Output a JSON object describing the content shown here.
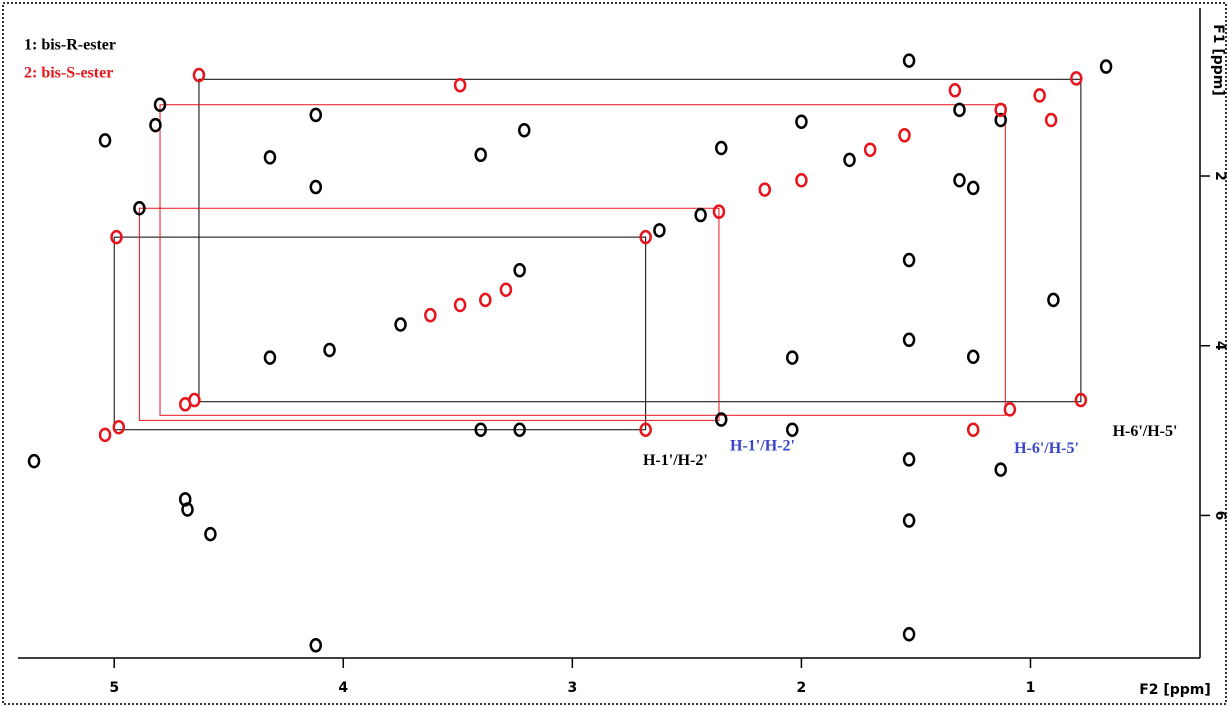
{
  "chart_data": {
    "type": "scatter",
    "legend": [
      "1: bis-R-ester",
      "2: bis-S-ester"
    ],
    "xlabel": "F2 [ppm]",
    "ylabel": "F1 [ppm]",
    "xlim": [
      5.42,
      0.26
    ],
    "ylim": [
      0.02,
      7.68
    ],
    "log_scale": false,
    "grid": false,
    "xticks": [
      5,
      4,
      3,
      2,
      1
    ],
    "yticks": [
      2,
      4,
      6
    ],
    "series": [
      {
        "name": "1: bis-R-ester",
        "color": "#000000",
        "x": [
          5.04,
          4.8,
          4.82,
          4.89,
          4.12,
          3.21,
          4.32,
          4.12,
          3.4,
          2.35,
          2.0,
          0.67,
          1.31,
          1.25,
          0.9,
          1.25,
          2.04,
          2.35,
          3.23,
          3.4,
          2.04,
          5.35,
          4.69,
          4.58,
          4.68,
          1.53,
          4.12,
          4.32,
          4.06,
          3.75,
          3.23,
          2.62,
          2.44,
          1.79,
          1.13,
          1.31,
          1.53,
          1.53,
          1.53,
          1.53,
          1.53,
          1.13
        ],
        "values": [
          1.58,
          1.16,
          1.4,
          2.38,
          1.28,
          1.46,
          1.78,
          2.13,
          1.75,
          1.67,
          1.36,
          0.71,
          2.05,
          2.14,
          3.46,
          4.13,
          4.14,
          4.87,
          4.99,
          4.99,
          4.99,
          5.36,
          5.81,
          6.22,
          5.93,
          7.4,
          7.53,
          4.14,
          4.05,
          3.75,
          3.11,
          2.64,
          2.46,
          1.81,
          1.34,
          1.22,
          0.64,
          2.99,
          3.93,
          5.34,
          6.06,
          5.46
        ]
      },
      {
        "name": "2: bis-S-ester",
        "color": "#e8141c",
        "x": [
          4.63,
          3.49,
          4.99,
          2.68,
          2.36,
          0.78,
          2.68,
          1.55,
          1.33,
          1.13,
          0.96,
          0.8,
          0.91,
          3.38,
          3.49,
          3.29,
          3.62,
          4.65,
          4.69,
          5.04,
          4.98,
          2.16,
          2.0,
          1.7,
          1.25,
          1.09
        ],
        "values": [
          0.81,
          0.93,
          2.72,
          2.72,
          2.42,
          4.64,
          4.99,
          1.52,
          0.99,
          1.22,
          1.05,
          0.85,
          1.34,
          3.46,
          3.52,
          3.34,
          3.64,
          4.64,
          4.69,
          5.05,
          4.96,
          2.16,
          2.05,
          1.69,
          4.99,
          4.75
        ]
      }
    ],
    "boxes": [
      {
        "color": "#000000",
        "x": [
          4.63,
          0.78
        ],
        "y": [
          0.86,
          4.66
        ]
      },
      {
        "color": "#000000",
        "x": [
          5.0,
          2.68
        ],
        "y": [
          2.72,
          4.99
        ]
      },
      {
        "color": "#e8141c",
        "x": [
          4.8,
          1.11
        ],
        "y": [
          1.16,
          4.82
        ]
      },
      {
        "color": "#e8141c",
        "x": [
          4.89,
          2.36
        ],
        "y": [
          2.38,
          4.88
        ]
      }
    ],
    "annotations": [
      {
        "text": "H-1'/H-2'",
        "color": "#000000",
        "x": 2.55,
        "y": 5.36
      },
      {
        "text": "H-1'/H-2'",
        "color": "#3a46c8",
        "x": 2.17,
        "y": 5.19
      },
      {
        "text": "H-6'/H-5'",
        "color": "#3a46c8",
        "x": 0.93,
        "y": 5.22
      },
      {
        "text": "H-6'/H-5'",
        "color": "#000000",
        "x": 0.5,
        "y": 5.02
      }
    ]
  }
}
